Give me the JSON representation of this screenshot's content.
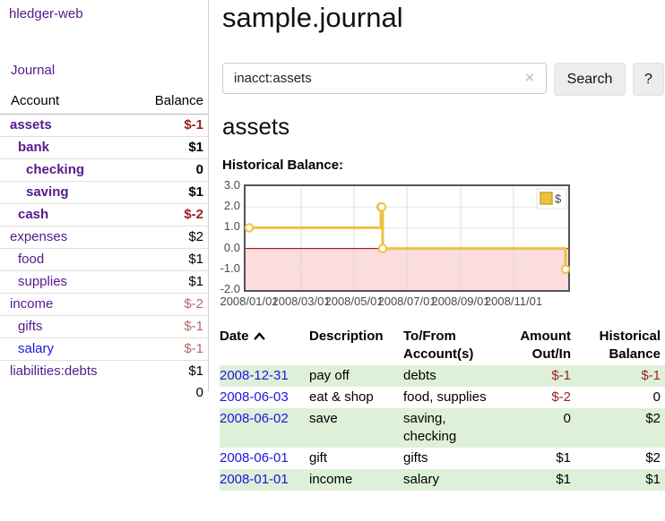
{
  "app": {
    "brand": "hledger-web",
    "title": "sample.journal"
  },
  "sidebar": {
    "journal_link": "Journal",
    "accounts": {
      "account_header": "Account",
      "balance_header": "Balance",
      "rows": [
        {
          "name": "assets",
          "depth": 0,
          "bold": true,
          "balance": "$-1",
          "neg": "strong"
        },
        {
          "name": "bank",
          "depth": 1,
          "bold": true,
          "balance": "$1",
          "neg": "none"
        },
        {
          "name": "checking",
          "depth": 2,
          "bold": true,
          "balance": "0",
          "neg": "none"
        },
        {
          "name": "saving",
          "depth": 2,
          "bold": true,
          "balance": "$1",
          "neg": "none"
        },
        {
          "name": "cash",
          "depth": 1,
          "bold": true,
          "balance": "$-2",
          "neg": "strong"
        },
        {
          "name": "expenses",
          "depth": 0,
          "bold": false,
          "balance": "$2",
          "neg": "none"
        },
        {
          "name": "food",
          "depth": 1,
          "bold": false,
          "balance": "$1",
          "neg": "none"
        },
        {
          "name": "supplies",
          "depth": 1,
          "bold": false,
          "balance": "$1",
          "neg": "none"
        },
        {
          "name": "income",
          "depth": 0,
          "bold": false,
          "balance": "$-2",
          "neg": "muted"
        },
        {
          "name": "gifts",
          "depth": 1,
          "bold": false,
          "balance": "$-1",
          "neg": "muted"
        },
        {
          "name": "salary",
          "depth": 1,
          "bold": false,
          "balance": "$-1",
          "neg": "muted",
          "link_style": "blue"
        },
        {
          "name": "liabilities:debts",
          "depth": 0,
          "bold": false,
          "balance": "$1",
          "neg": "none"
        }
      ],
      "total": "0"
    }
  },
  "search": {
    "value": "inacct:assets",
    "clear_icon": "×",
    "button": "Search",
    "help_button": "?"
  },
  "account_page": {
    "heading": "assets",
    "chart_title": "Historical Balance:"
  },
  "chart_data": {
    "type": "line",
    "title": "Historical Balance:",
    "legend": "$",
    "legend_position": "top-right",
    "grid": true,
    "series": [
      {
        "name": "$",
        "color": "#edc240",
        "points": [
          [
            "2008-01-01",
            1
          ],
          [
            "2008-06-01",
            2
          ],
          [
            "2008-06-02",
            2
          ],
          [
            "2008-06-03",
            0
          ],
          [
            "2008-12-31",
            -1
          ]
        ]
      }
    ],
    "x_ticks": [
      "2008/01/01",
      "2008/03/01",
      "2008/05/01",
      "2008/07/01",
      "2008/09/01",
      "2008/11/01"
    ],
    "y_tick_labels": [
      "3.0",
      "2.0",
      "1.0",
      "0.0",
      "-1.0",
      "-2.0"
    ],
    "ylim": [
      -2,
      3
    ],
    "xlim": [
      "2008-01-01",
      "2009-01-01"
    ],
    "negative_region_color": "#fcdcdc",
    "zero_line_color": "#8b0000",
    "border_color": "#545454"
  },
  "register": {
    "headers": {
      "date": "Date",
      "description": "Description",
      "accounts": "To/From Account(s)",
      "amount": "Amount Out/In",
      "balance": "Historical Balance"
    },
    "rows": [
      {
        "date": "2008-12-31",
        "description": "pay off",
        "accounts": "debts",
        "amount": "$-1",
        "amount_neg": true,
        "balance": "$-1",
        "balance_neg": true
      },
      {
        "date": "2008-06-03",
        "description": "eat & shop",
        "accounts": "food, supplies",
        "amount": "$-2",
        "amount_neg": true,
        "balance": "0",
        "balance_neg": false
      },
      {
        "date": "2008-06-02",
        "description": "save",
        "accounts": "saving, checking",
        "amount": "0",
        "amount_neg": false,
        "balance": "$2",
        "balance_neg": false
      },
      {
        "date": "2008-06-01",
        "description": "gift",
        "accounts": "gifts",
        "amount": "$1",
        "amount_neg": false,
        "balance": "$2",
        "balance_neg": false
      },
      {
        "date": "2008-01-01",
        "description": "income",
        "accounts": "salary",
        "amount": "$1",
        "amount_neg": false,
        "balance": "$1",
        "balance_neg": false
      }
    ]
  },
  "colors": {
    "link_purple": "#551a8b",
    "link_blue": "#1a16e0",
    "negative_strong": "#9c1f1f",
    "negative_muted": "#b26868",
    "row_green": "#dff0d8",
    "chart_line": "#edc240",
    "chart_negative_region": "#fcdcdc",
    "chart_zero_line": "#8b0000"
  }
}
